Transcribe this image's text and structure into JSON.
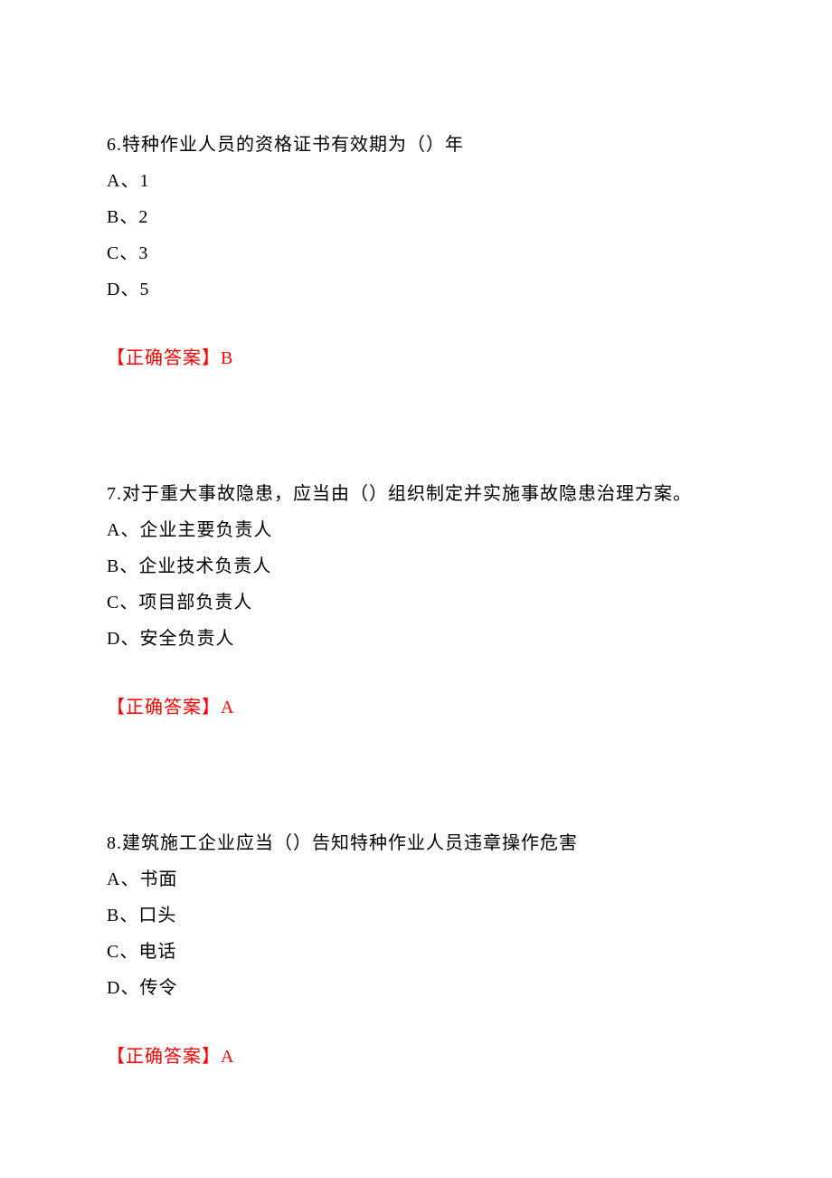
{
  "page": {
    "background_color": "#ffffff",
    "text_color": "#000000",
    "answer_color": "#ff0000",
    "font_family": "SimSun",
    "font_size_pt": 15
  },
  "questions": [
    {
      "number": "6",
      "text": "6.特种作业人员的资格证书有效期为（）年",
      "options": [
        "A、1",
        "B、2",
        "C、3",
        "D、5"
      ],
      "answer_label": "【正确答案】",
      "answer_value": "B"
    },
    {
      "number": "7",
      "text": "7.对于重大事故隐患，应当由（）组织制定并实施事故隐患治理方案。",
      "options": [
        "A、企业主要负责人",
        "B、企业技术负责人",
        "C、项目部负责人",
        "D、安全负责人"
      ],
      "answer_label": "【正确答案】",
      "answer_value": "A"
    },
    {
      "number": "8",
      "text": "8.建筑施工企业应当（）告知特种作业人员违章操作危害",
      "options": [
        "A、书面",
        "B、口头",
        "C、电话",
        "D、传令"
      ],
      "answer_label": "【正确答案】",
      "answer_value": "A"
    }
  ]
}
